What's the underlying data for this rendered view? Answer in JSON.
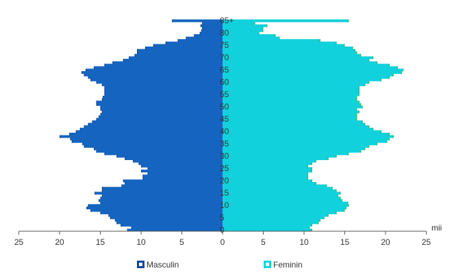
{
  "chart_data": {
    "type": "bar",
    "orientation": "horizontal-pyramid",
    "xlabel": "",
    "ylabel": "",
    "unit_label": "mii",
    "xlim": [
      -25,
      25
    ],
    "x_tick_values": [
      -25,
      -20,
      -15,
      -10,
      -5,
      0,
      5,
      10,
      15,
      20,
      25
    ],
    "x_tick_labels": [
      "25",
      "20",
      "15",
      "10",
      "5",
      "0",
      "5",
      "10",
      "15",
      "20",
      "25"
    ],
    "age_tick_values": [
      0,
      5,
      10,
      15,
      20,
      25,
      30,
      35,
      40,
      45,
      50,
      55,
      60,
      65,
      70,
      75,
      80,
      85
    ],
    "age_tick_labels": [
      "0",
      "5",
      "10",
      "15",
      "20",
      "25",
      "30",
      "35",
      "40",
      "45",
      "50",
      "55",
      "60",
      "65",
      "70",
      "75",
      "80",
      "85+"
    ],
    "legend_position": "bottom",
    "ages": [
      0,
      1,
      2,
      3,
      4,
      5,
      6,
      7,
      8,
      9,
      10,
      11,
      12,
      13,
      14,
      15,
      16,
      17,
      18,
      19,
      20,
      21,
      22,
      23,
      24,
      25,
      26,
      27,
      28,
      29,
      30,
      31,
      32,
      33,
      34,
      35,
      36,
      37,
      38,
      39,
      40,
      41,
      42,
      43,
      44,
      45,
      46,
      47,
      48,
      49,
      50,
      51,
      52,
      53,
      54,
      55,
      56,
      57,
      58,
      59,
      60,
      61,
      62,
      63,
      64,
      65,
      66,
      67,
      68,
      69,
      70,
      71,
      72,
      73,
      74,
      75,
      76,
      77,
      78,
      79,
      80,
      81,
      82,
      83,
      84,
      85
    ],
    "series": [
      {
        "name": "Masculin",
        "color": "#1565c0",
        "accent": "#0d47a1",
        "values": [
          11.7,
          11.2,
          12.5,
          13.0,
          13.2,
          13.8,
          14.0,
          15.0,
          16.2,
          16.7,
          16.5,
          15.0,
          15.2,
          15.0,
          14.8,
          15.7,
          14.8,
          14.8,
          12.4,
          12.0,
          12.2,
          9.8,
          9.8,
          9.2,
          10.0,
          9.2,
          10.0,
          10.3,
          11.0,
          12.0,
          13.0,
          14.5,
          15.5,
          15.8,
          17.0,
          17.2,
          18.5,
          18.7,
          20.0,
          18.8,
          18.0,
          17.5,
          17.0,
          16.5,
          16.0,
          15.5,
          15.2,
          15.0,
          14.8,
          15.0,
          15.0,
          15.5,
          15.5,
          14.8,
          14.7,
          14.5,
          14.5,
          14.5,
          14.5,
          14.8,
          15.5,
          16.2,
          16.5,
          17.0,
          17.3,
          16.8,
          15.8,
          14.5,
          13.5,
          12.2,
          11.5,
          10.8,
          10.5,
          10.5,
          9.5,
          8.5,
          7.0,
          5.5,
          4.5,
          3.5,
          2.8,
          2.6,
          2.5,
          2.7,
          2.5,
          6.2
        ]
      },
      {
        "name": "Feminin",
        "color": "#11d1dc",
        "accent": "#4caf50",
        "values": [
          11.0,
          10.7,
          11.0,
          11.8,
          12.0,
          12.5,
          13.0,
          14.0,
          15.0,
          15.2,
          15.5,
          15.4,
          14.7,
          14.5,
          14.2,
          14.5,
          14.0,
          13.5,
          12.8,
          11.5,
          11.0,
          10.5,
          10.5,
          10.5,
          11.0,
          11.0,
          10.5,
          11.0,
          11.5,
          13.0,
          14.0,
          15.5,
          17.0,
          17.5,
          18.0,
          19.0,
          20.2,
          20.5,
          21.0,
          20.5,
          19.5,
          18.5,
          18.0,
          17.5,
          17.2,
          16.5,
          16.5,
          16.5,
          16.8,
          16.5,
          17.2,
          17.0,
          16.8,
          16.5,
          16.5,
          16.8,
          16.8,
          16.8,
          16.8,
          17.5,
          18.0,
          19.5,
          20.5,
          21.0,
          22.0,
          22.2,
          21.5,
          20.5,
          19.0,
          18.0,
          18.5,
          17.0,
          16.5,
          16.3,
          16.0,
          15.0,
          14.0,
          12.0,
          7.0,
          6.5,
          4.5,
          5.0,
          5.0,
          5.5,
          4.0,
          15.5
        ]
      }
    ]
  }
}
